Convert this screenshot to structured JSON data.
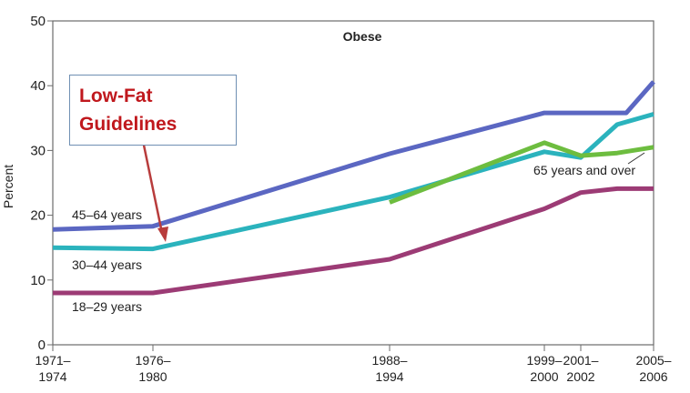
{
  "chart_data": {
    "type": "line",
    "title": "Obese",
    "ylabel": "Percent",
    "xlabel": "",
    "ylim": [
      0,
      50
    ],
    "yticks": [
      0,
      10,
      20,
      30,
      40,
      50
    ],
    "x_ticks": [
      {
        "line1": "1971–",
        "line2": "1974",
        "x": 1972.5
      },
      {
        "line1": "1976–",
        "line2": "1980",
        "x": 1978
      },
      {
        "line1": "1988–",
        "line2": "1994",
        "x": 1991
      },
      {
        "line1": "1999–",
        "line2": "2000",
        "x": 1999.5
      },
      {
        "line1": "2001–",
        "line2": "2002",
        "x": 2001.5
      },
      {
        "line1": "2005–",
        "line2": "2006",
        "x": 2005.5
      }
    ],
    "xlim": [
      1972.5,
      2005.5
    ],
    "grid": false,
    "series": [
      {
        "name": "45–64 years",
        "color": "#5b67c2",
        "points": [
          [
            1972.5,
            17.8
          ],
          [
            1978,
            18.3
          ],
          [
            1991,
            29.5
          ],
          [
            1999.5,
            35.8
          ],
          [
            2001.5,
            35.8
          ],
          [
            2004,
            35.8
          ],
          [
            2005.5,
            40.6
          ]
        ]
      },
      {
        "name": "30–44 years",
        "color": "#2bb3bd",
        "points": [
          [
            1972.5,
            15.0
          ],
          [
            1978,
            14.8
          ],
          [
            1991,
            22.8
          ],
          [
            1999.5,
            29.8
          ],
          [
            2001.5,
            28.9
          ],
          [
            2003.5,
            34.0
          ],
          [
            2005.5,
            35.6
          ]
        ]
      },
      {
        "name": "65 years and over",
        "color": "#6dbd3f",
        "points": [
          [
            1991,
            22.0
          ],
          [
            1999.5,
            31.2
          ],
          [
            2001.5,
            29.2
          ],
          [
            2003.5,
            29.6
          ],
          [
            2005.5,
            30.5
          ]
        ]
      },
      {
        "name": "18–29 years",
        "color": "#9c3b75",
        "points": [
          [
            1972.5,
            8.0
          ],
          [
            1978,
            8.0
          ],
          [
            1991,
            13.2
          ],
          [
            1999.5,
            21.0
          ],
          [
            2001.5,
            23.5
          ],
          [
            2003.5,
            24.1
          ],
          [
            2005.5,
            24.1
          ]
        ]
      }
    ],
    "annotations": {
      "callout_lines": [
        "Low-Fat",
        "Guidelines"
      ]
    }
  }
}
